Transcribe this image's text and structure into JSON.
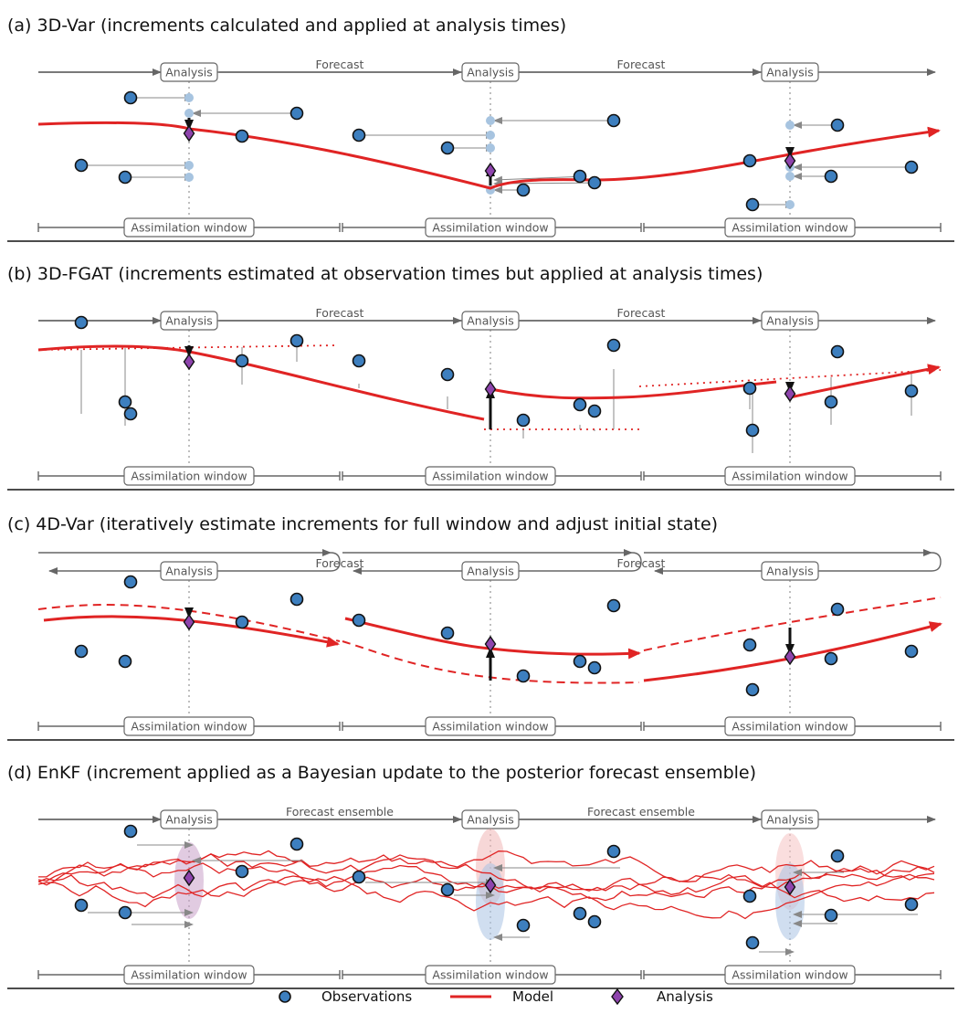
{
  "panels": [
    {
      "id": "a",
      "title": "(a)  3D-Var (increments calculated and applied at analysis times)"
    },
    {
      "id": "b",
      "title": "(b)  3D-FGAT (increments estimated at observation times but applied at analysis times)"
    },
    {
      "id": "c",
      "title": "(c)  4D-Var (iteratively estimate increments for full window and adjust initial state)"
    },
    {
      "id": "d",
      "title": "(d)  EnKF (increment applied as a Bayesian update to the posterior forecast ensemble)"
    }
  ],
  "labels": {
    "analysis": "Analysis",
    "forecast": "Forecast",
    "forecast_ensemble": "Forecast ensemble",
    "assimilation_window": "Assimilation window"
  },
  "legend": {
    "observations": "Observations",
    "model": "Model",
    "analysis": "Analysis"
  },
  "colors": {
    "observation_fill": "#3d7fbf",
    "model": "#e02424",
    "analysis_fill": "#8e44ad",
    "increment": "#a7c4e0",
    "timeline": "#666666"
  }
}
